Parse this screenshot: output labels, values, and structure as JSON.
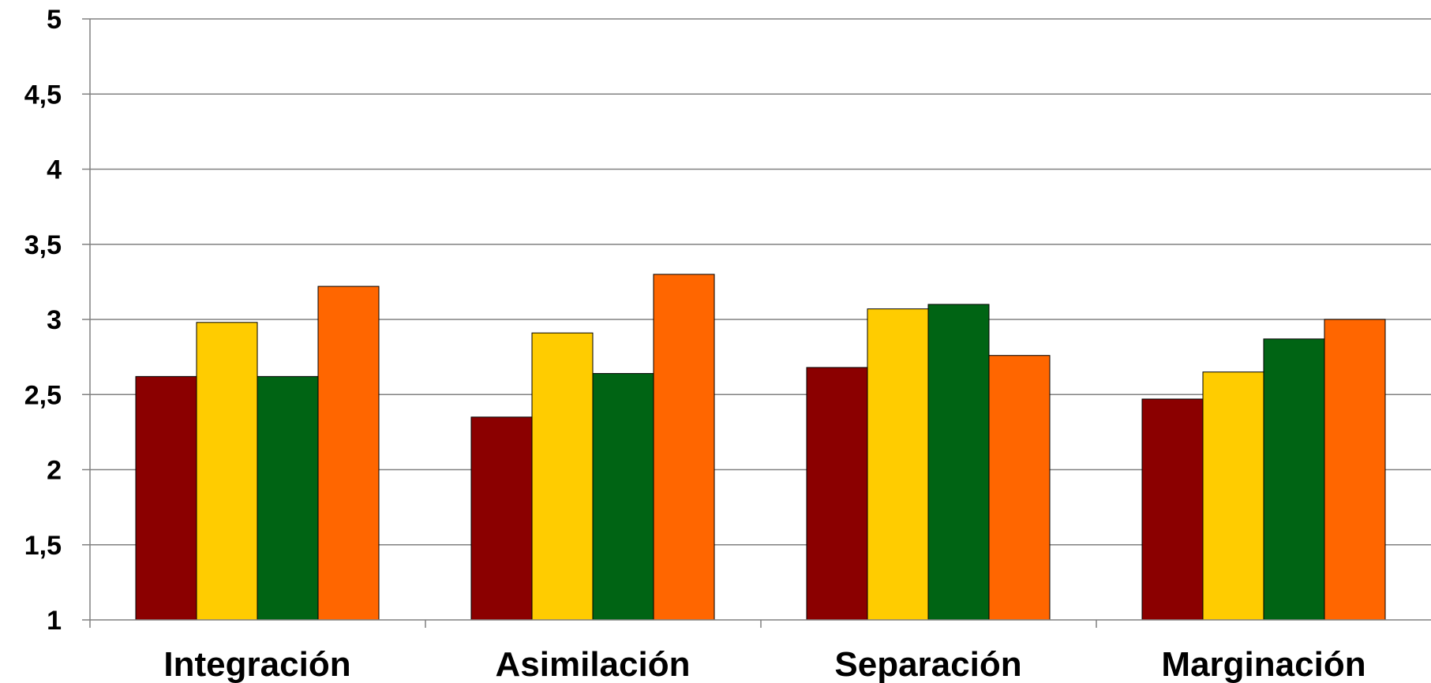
{
  "chart_data": {
    "type": "bar",
    "title": "",
    "xlabel": "",
    "ylabel": "",
    "categories": [
      "Integración",
      "Asimilación",
      "Separación",
      "Marginación"
    ],
    "ylim": [
      1,
      5
    ],
    "yticks": [
      1,
      1.5,
      2,
      2.5,
      3,
      3.5,
      4,
      4.5,
      5
    ],
    "ytick_labels": [
      "1",
      "1,5",
      "2",
      "2,5",
      "3",
      "3,5",
      "4",
      "4,5",
      "5"
    ],
    "grid": true,
    "legend": "none",
    "series": [
      {
        "color": "#8B0000",
        "values": [
          2.62,
          2.35,
          2.68,
          2.47
        ]
      },
      {
        "color": "#FFCC00",
        "values": [
          2.98,
          2.91,
          3.07,
          2.65
        ]
      },
      {
        "color": "#006414",
        "values": [
          2.62,
          2.64,
          3.1,
          2.87
        ]
      },
      {
        "color": "#FF6600",
        "values": [
          3.22,
          3.3,
          2.76,
          3.0
        ]
      }
    ]
  }
}
